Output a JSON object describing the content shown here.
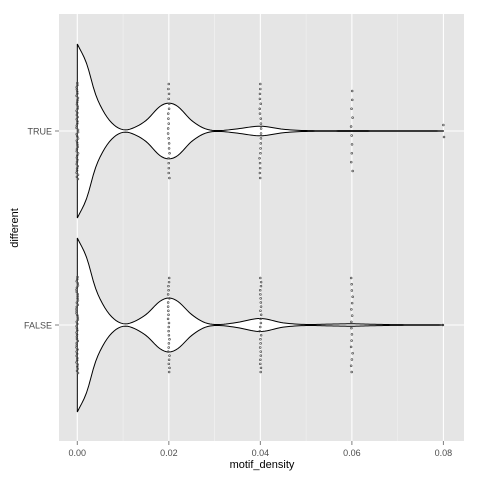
{
  "chart_data": {
    "type": "violin",
    "orientation": "horizontal",
    "xlabel": "motif_density",
    "ylabel": "different",
    "xlim": [
      -0.004,
      0.0845
    ],
    "x_ticks": [
      0.0,
      0.02,
      0.04,
      0.06,
      0.08
    ],
    "x_tick_labels": [
      "0.00",
      "0.02",
      "0.04",
      "0.06",
      "0.08"
    ],
    "categories": [
      "TRUE",
      "FALSE"
    ],
    "series": [
      {
        "category": "TRUE",
        "density": [
          {
            "x": 0.0,
            "d": 1.0
          },
          {
            "x": 0.002,
            "d": 0.78
          },
          {
            "x": 0.004,
            "d": 0.42
          },
          {
            "x": 0.006,
            "d": 0.2
          },
          {
            "x": 0.008,
            "d": 0.07
          },
          {
            "x": 0.01,
            "d": 0.015
          },
          {
            "x": 0.012,
            "d": 0.03
          },
          {
            "x": 0.015,
            "d": 0.12
          },
          {
            "x": 0.018,
            "d": 0.28
          },
          {
            "x": 0.02,
            "d": 0.32
          },
          {
            "x": 0.022,
            "d": 0.28
          },
          {
            "x": 0.025,
            "d": 0.12
          },
          {
            "x": 0.028,
            "d": 0.025
          },
          {
            "x": 0.031,
            "d": 0.005
          },
          {
            "x": 0.035,
            "d": 0.025
          },
          {
            "x": 0.04,
            "d": 0.055
          },
          {
            "x": 0.045,
            "d": 0.02
          },
          {
            "x": 0.05,
            "d": 0.005
          },
          {
            "x": 0.06,
            "d": 0.004
          },
          {
            "x": 0.07,
            "d": 0.003
          },
          {
            "x": 0.08,
            "d": 0.002
          }
        ],
        "points": [
          {
            "x": 0.0,
            "count": 46
          },
          {
            "x": 0.02,
            "count": 20
          },
          {
            "x": 0.04,
            "count": 20
          },
          {
            "x": 0.06,
            "count": 10
          },
          {
            "x": 0.08,
            "count": 2
          }
        ]
      },
      {
        "category": "FALSE",
        "density": [
          {
            "x": 0.0,
            "d": 1.0
          },
          {
            "x": 0.002,
            "d": 0.78
          },
          {
            "x": 0.004,
            "d": 0.42
          },
          {
            "x": 0.006,
            "d": 0.2
          },
          {
            "x": 0.008,
            "d": 0.07
          },
          {
            "x": 0.01,
            "d": 0.015
          },
          {
            "x": 0.012,
            "d": 0.03
          },
          {
            "x": 0.015,
            "d": 0.12
          },
          {
            "x": 0.018,
            "d": 0.27
          },
          {
            "x": 0.02,
            "d": 0.31
          },
          {
            "x": 0.022,
            "d": 0.27
          },
          {
            "x": 0.025,
            "d": 0.12
          },
          {
            "x": 0.028,
            "d": 0.025
          },
          {
            "x": 0.031,
            "d": 0.006
          },
          {
            "x": 0.035,
            "d": 0.03
          },
          {
            "x": 0.04,
            "d": 0.075
          },
          {
            "x": 0.045,
            "d": 0.025
          },
          {
            "x": 0.05,
            "d": 0.006
          },
          {
            "x": 0.055,
            "d": 0.01
          },
          {
            "x": 0.06,
            "d": 0.014
          },
          {
            "x": 0.065,
            "d": 0.008
          },
          {
            "x": 0.07,
            "d": 0.004
          },
          {
            "x": 0.08,
            "d": 0.002
          }
        ],
        "points": [
          {
            "x": 0.0,
            "count": 46
          },
          {
            "x": 0.02,
            "count": 24
          },
          {
            "x": 0.04,
            "count": 24
          },
          {
            "x": 0.06,
            "count": 16
          },
          {
            "x": 0.08,
            "count": 1
          }
        ]
      }
    ],
    "background": "#e5e5e5",
    "grid": true,
    "grid_major_color": "#ffffff",
    "grid_minor_color": "#f2f2f2",
    "violin_fill": "#ffffff",
    "violin_stroke": "#000000",
    "point_color": "#4d4d4d"
  }
}
